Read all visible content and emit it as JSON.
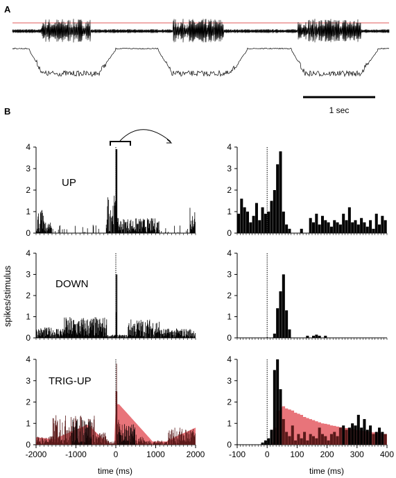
{
  "panels": {
    "a": {
      "letter": "A",
      "scale_bar_label": "1 sec"
    },
    "b": {
      "letter": "B"
    }
  },
  "colors": {
    "trace": "#000000",
    "threshold": "#e05a5a",
    "histogram": "#000000",
    "overlay_fill": "#e8747a",
    "overlay_dark": "#5a1a1a"
  },
  "axes": {
    "ylabel": "spikes/stimulus",
    "xlabel_left": "time (ms)",
    "xlabel_right": "time (ms)",
    "left_xticks": [
      -2000,
      -1000,
      0,
      1000,
      2000
    ],
    "right_xticks": [
      -100,
      0,
      100,
      200,
      300,
      400
    ],
    "yticks": [
      0,
      1,
      2,
      3,
      4
    ],
    "left_xlim": [
      -2000,
      2000
    ],
    "right_xlim": [
      -100,
      400
    ],
    "ylim": [
      0,
      4
    ]
  },
  "chart_data": [
    {
      "type": "bar",
      "title": "UP",
      "xlim": [
        -100,
        400
      ],
      "ylim": [
        0,
        4
      ],
      "bin_width_ms": 10,
      "x": [
        -100,
        -90,
        -80,
        -70,
        -60,
        -50,
        -40,
        -30,
        -20,
        -10,
        0,
        10,
        20,
        30,
        40,
        50,
        60,
        70,
        80,
        90,
        100,
        110,
        120,
        130,
        140,
        150,
        160,
        170,
        180,
        190,
        200,
        210,
        220,
        230,
        240,
        250,
        260,
        270,
        280,
        290,
        300,
        310,
        320,
        330,
        340,
        350,
        360,
        370,
        380,
        390
      ],
      "values": [
        0.9,
        1.6,
        1.2,
        1.0,
        0.5,
        0.8,
        1.4,
        0.6,
        1.2,
        0.9,
        1.0,
        1.5,
        2.0,
        3.2,
        3.8,
        1.0,
        0.4,
        0.2,
        0.0,
        0.0,
        0.0,
        0.2,
        0.0,
        0.0,
        0.7,
        0.5,
        0.9,
        0.4,
        0.8,
        0.6,
        0.5,
        0.3,
        0.6,
        0.5,
        0.4,
        0.9,
        0.6,
        1.2,
        0.5,
        0.6,
        0.4,
        0.7,
        0.5,
        0.3,
        0.6,
        0.2,
        0.9,
        0.4,
        0.8,
        0.6
      ]
    },
    {
      "type": "bar",
      "title": "DOWN",
      "xlim": [
        -100,
        400
      ],
      "ylim": [
        0,
        4
      ],
      "bin_width_ms": 10,
      "x": [
        20,
        30,
        40,
        50,
        60,
        70,
        80,
        90,
        100,
        110,
        120,
        130,
        140,
        150,
        160,
        170,
        180,
        190,
        200
      ],
      "values": [
        0.2,
        1.4,
        2.2,
        3.0,
        1.3,
        0.4,
        0.0,
        0.0,
        0.0,
        0.0,
        0.0,
        0.1,
        0.0,
        0.1,
        0.15,
        0.1,
        0.0,
        0.1,
        0.0
      ]
    },
    {
      "type": "bar",
      "title": "TRIG-UP",
      "xlim": [
        -100,
        400
      ],
      "ylim": [
        0,
        4
      ],
      "bin_width_ms": 10,
      "series": [
        {
          "name": "",
          "x": [
            -100,
            -90,
            -80,
            -70,
            -60,
            -50,
            -40,
            -30,
            -20,
            -10,
            0,
            10,
            20,
            30,
            40,
            50,
            60,
            70,
            80,
            90,
            100,
            110,
            120,
            130,
            140,
            150,
            160,
            170,
            180,
            190,
            200,
            210,
            220,
            230,
            240,
            250,
            260,
            270,
            280,
            290,
            300,
            310,
            320,
            330,
            340,
            350,
            360,
            370,
            380,
            390
          ],
          "values": [
            0,
            0,
            0,
            0,
            0,
            0,
            0,
            0,
            0.1,
            0.2,
            0.3,
            0.7,
            3.5,
            4.0,
            2.6,
            1.2,
            0.6,
            0.4,
            0.9,
            0.2,
            0.5,
            0.3,
            0.6,
            0.2,
            0.5,
            0.4,
            0.3,
            0.8,
            0.5,
            0.4,
            0.2,
            0.5,
            0.6,
            0.4,
            0.8,
            0.9,
            0.7,
            0.8,
            1.0,
            0.9,
            1.4,
            0.8,
            1.2,
            0.7,
            0.9,
            0.5,
            0.6,
            0.8,
            0.6,
            0.5
          ]
        },
        {
          "name": "",
          "x": [
            -100,
            -90,
            -80,
            -70,
            -60,
            -50,
            -40,
            -30,
            -20,
            -10,
            0,
            10,
            20,
            30,
            40,
            50,
            60,
            70,
            80,
            90,
            100,
            110,
            120,
            130,
            140,
            150,
            160,
            170,
            180,
            190,
            200,
            210,
            220,
            230,
            240,
            250,
            260,
            270,
            280,
            290,
            300,
            310,
            320,
            330,
            340,
            350,
            360,
            370,
            380,
            390
          ],
          "values": [
            0,
            0,
            0,
            0,
            0,
            0,
            0,
            0,
            0,
            0,
            0,
            0.1,
            0.8,
            1.6,
            1.75,
            1.8,
            1.7,
            1.65,
            1.6,
            1.5,
            1.45,
            1.4,
            1.3,
            1.25,
            1.2,
            1.15,
            1.1,
            1.05,
            1.0,
            0.98,
            0.95,
            0.9,
            0.88,
            0.85,
            0.82,
            0.8,
            0.78,
            0.75,
            0.72,
            0.7,
            0.68,
            0.66,
            0.64,
            0.62,
            0.6,
            0.58,
            0.56,
            0.55,
            0.5,
            0.5
          ]
        }
      ]
    }
  ]
}
